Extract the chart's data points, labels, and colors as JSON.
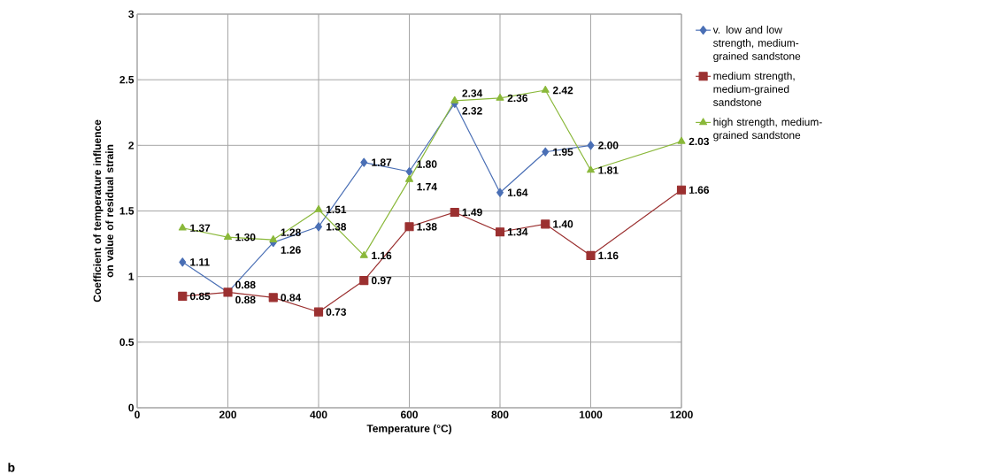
{
  "chart_data": {
    "type": "line",
    "xlabel": "Temperature (°C)",
    "ylabel": "Coefficient of temperature influence on value of residual strain",
    "xlim": [
      0,
      1200
    ],
    "xticks": [
      0,
      200,
      400,
      600,
      800,
      1000,
      1200
    ],
    "ylim": [
      0,
      3
    ],
    "yticks": [
      0,
      0.5,
      1,
      1.5,
      2,
      2.5,
      3
    ],
    "grid": true,
    "legend": "right",
    "line_style": "solid",
    "series": [
      {
        "name": "v. low and low strength, medium-grained sandstone",
        "color": "#4a6fb5",
        "marker": "diamond",
        "x": [
          100,
          200,
          300,
          400,
          500,
          600,
          700,
          800,
          900,
          1000
        ],
        "values": [
          1.11,
          0.88,
          1.26,
          1.38,
          1.87,
          1.8,
          2.32,
          1.64,
          1.95,
          2.0
        ],
        "value_labels": [
          "1.11",
          "0.88",
          "1.26",
          "1.38",
          "1.87",
          "1.80",
          "2.32",
          "1.64",
          "1.95",
          "2.00"
        ]
      },
      {
        "name": "medium strength, medium-grained sandstone",
        "color": "#9b3030",
        "marker": "square",
        "x": [
          100,
          200,
          300,
          400,
          500,
          600,
          700,
          800,
          900,
          1000,
          1200
        ],
        "values": [
          0.85,
          0.88,
          0.84,
          0.73,
          0.97,
          1.38,
          1.49,
          1.34,
          1.4,
          1.16,
          1.66
        ],
        "value_labels": [
          "0.85",
          "0.88",
          "0.84",
          "0.73",
          "0.97",
          "1.38",
          "1.49",
          "1.34",
          "1.40",
          "1.16",
          "1.66"
        ]
      },
      {
        "name": "high strength, medium-grained sandstone",
        "color": "#8ab83a",
        "marker": "triangle",
        "x": [
          100,
          200,
          300,
          400,
          500,
          600,
          700,
          800,
          900,
          1000,
          1200
        ],
        "values": [
          1.37,
          1.3,
          1.28,
          1.51,
          1.16,
          1.74,
          2.34,
          2.36,
          2.42,
          1.81,
          2.03
        ],
        "value_labels": [
          "1.37",
          "1.30",
          "1.28",
          "1.51",
          "1.16",
          "1.74",
          "2.34",
          "2.36",
          "2.42",
          "1.81",
          "2.03"
        ]
      }
    ],
    "annotations": [
      "b"
    ]
  }
}
